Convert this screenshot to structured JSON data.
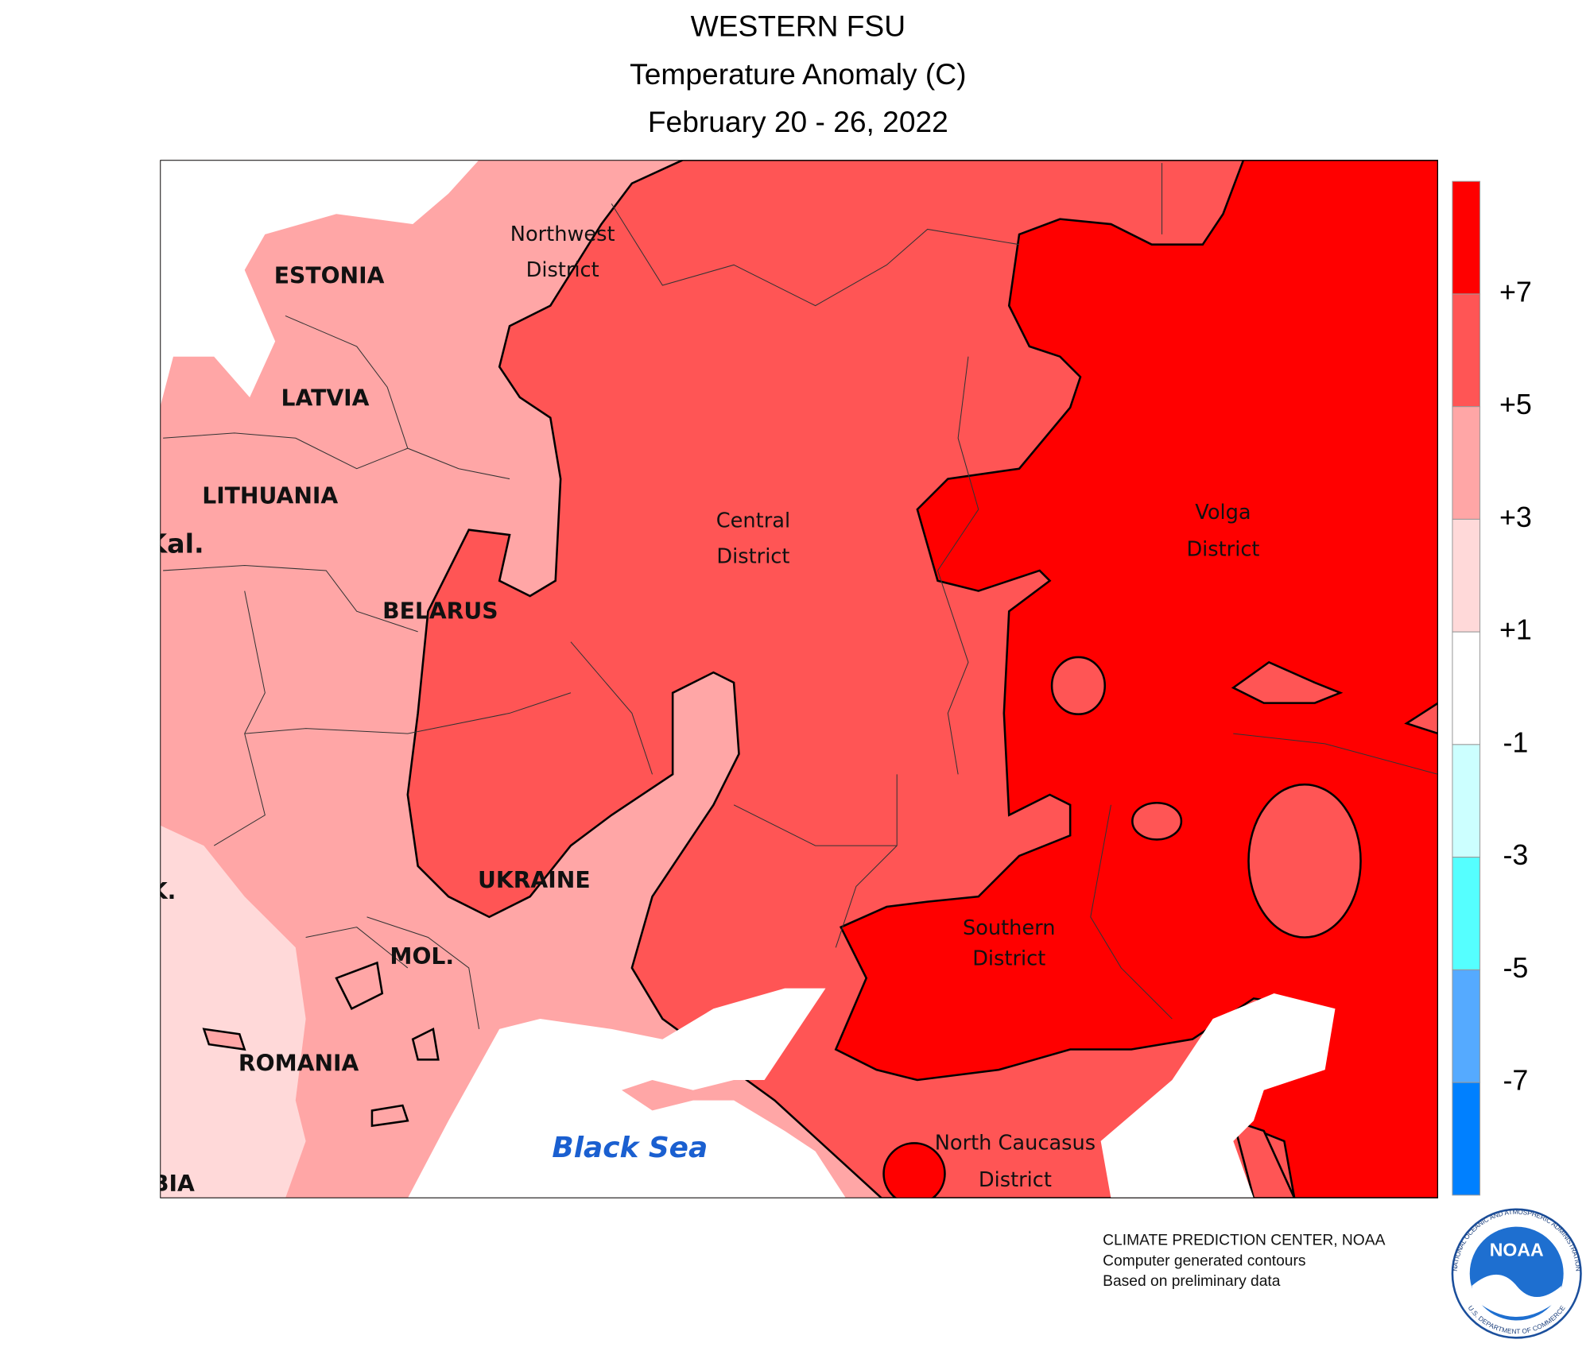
{
  "header": {
    "title": "WESTERN FSU",
    "subtitle": "Temperature Anomaly (C)",
    "date": "February 20 - 26, 2022"
  },
  "map": {
    "labels": {
      "estonia": "ESTONIA",
      "latvia": "LATVIA",
      "lithuania": "LITHUANIA",
      "kaliningrad": "Kal.",
      "belarus": "BELARUS",
      "ukraine": "UKRAINE",
      "moldova": "MOL.",
      "romania": "ROMANIA",
      "serbia": "BIA",
      "slovakia": "K.",
      "black_sea": "Black Sea",
      "northwest_1": "Northwest",
      "northwest_2": "District",
      "central_1": "Central",
      "central_2": "District",
      "volga_1": "Volga",
      "volga_2": "District",
      "southern_1": "Southern",
      "southern_2": "District",
      "caucasus_1": "North Caucasus",
      "caucasus_2": "District"
    }
  },
  "legend": {
    "colors": [
      "#ff0000",
      "#ff5555",
      "#ffa6a6",
      "#ffd9d9",
      "#ffffff",
      "#ccffff",
      "#55ffff",
      "#55aaff",
      "#0080ff"
    ],
    "labels": [
      "+7",
      "+5",
      "+3",
      "+1",
      "-1",
      "-3",
      "-5",
      "-7"
    ]
  },
  "credits": {
    "line1": "CLIMATE PREDICTION CENTER, NOAA",
    "line2": "Computer generated contours",
    "line3": "Based on preliminary data"
  },
  "logo": {
    "name": "NOAA",
    "ring_top": "NATIONAL OCEANIC AND ATMOSPHERIC ADMINISTRATION",
    "ring_bottom": "U.S. DEPARTMENT OF COMMERCE"
  }
}
